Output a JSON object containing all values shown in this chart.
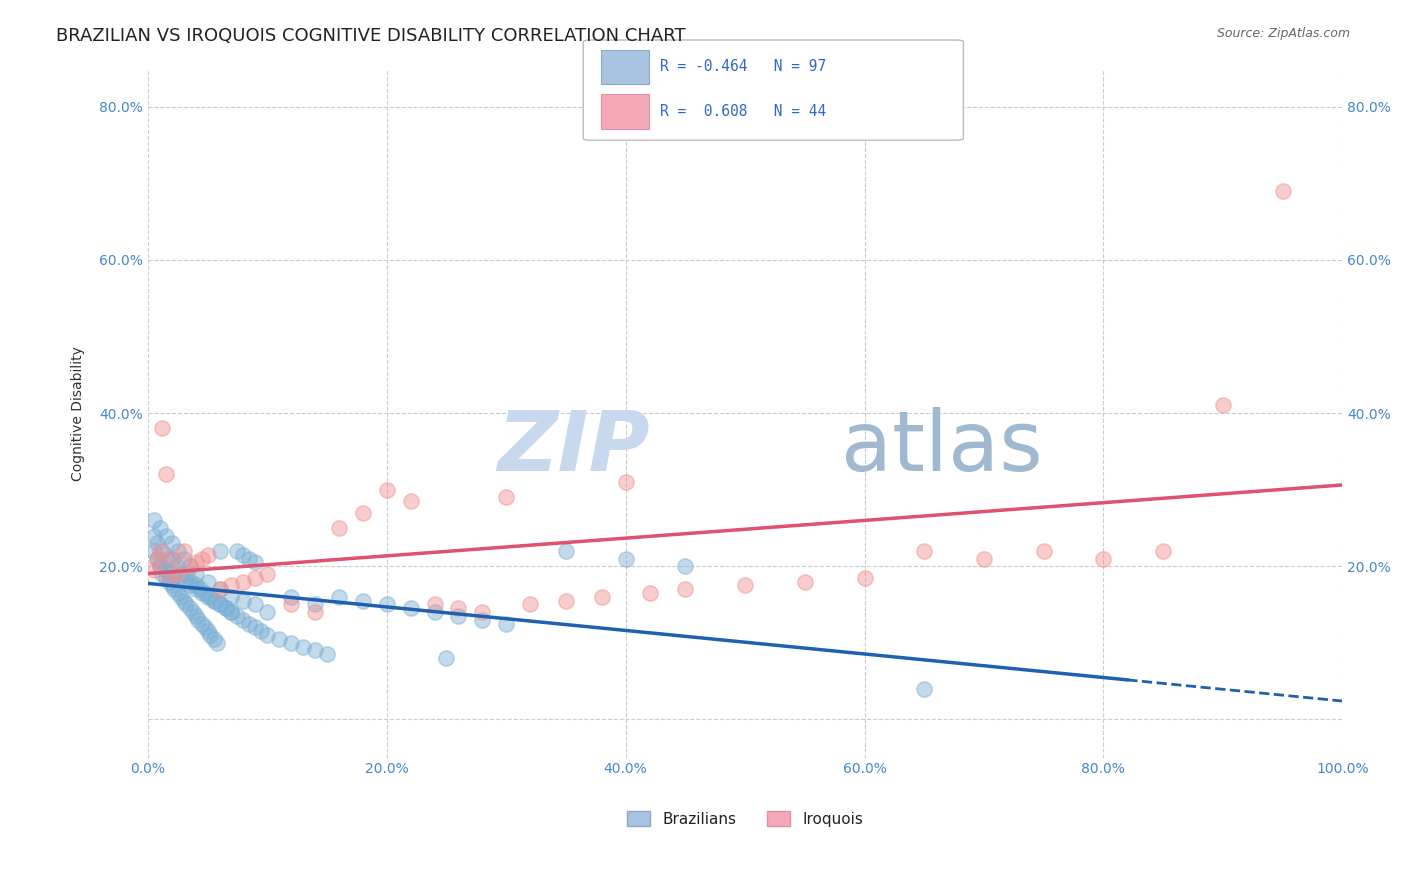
{
  "title": "BRAZILIAN VS IROQUOIS COGNITIVE DISABILITY CORRELATION CHART",
  "source": "Source: ZipAtlas.com",
  "ylabel": "Cognitive Disability",
  "watermark_zip": "ZIP",
  "watermark_atlas": "atlas",
  "legend_labels": [
    "Brazilians",
    "Iroquois"
  ],
  "legend_r1": "R = -0.464   N = 97",
  "legend_r2": "R =  0.608   N = 44",
  "xlim": [
    0.0,
    1.0
  ],
  "ylim": [
    -0.05,
    0.85
  ],
  "xticks": [
    0.0,
    0.2,
    0.4,
    0.6,
    0.8,
    1.0
  ],
  "yticks": [
    0.0,
    0.2,
    0.4,
    0.6,
    0.8
  ],
  "ytick_labels": [
    "",
    "20.0%",
    "40.0%",
    "60.0%",
    "80.0%"
  ],
  "xtick_labels": [
    "0.0%",
    "20.0%",
    "40.0%",
    "60.0%",
    "80.0%",
    "100.0%"
  ],
  "blue_scatter_x": [
    0.005,
    0.008,
    0.01,
    0.012,
    0.015,
    0.018,
    0.02,
    0.022,
    0.025,
    0.028,
    0.03,
    0.032,
    0.035,
    0.038,
    0.04,
    0.042,
    0.045,
    0.048,
    0.05,
    0.052,
    0.055,
    0.058,
    0.06,
    0.005,
    0.008,
    0.012,
    0.016,
    0.02,
    0.024,
    0.028,
    0.032,
    0.036,
    0.04,
    0.044,
    0.048,
    0.052,
    0.056,
    0.06,
    0.065,
    0.07,
    0.075,
    0.08,
    0.085,
    0.09,
    0.01,
    0.015,
    0.02,
    0.025,
    0.03,
    0.035,
    0.04,
    0.045,
    0.05,
    0.055,
    0.06,
    0.065,
    0.07,
    0.075,
    0.08,
    0.085,
    0.09,
    0.095,
    0.1,
    0.11,
    0.12,
    0.13,
    0.14,
    0.15,
    0.16,
    0.18,
    0.2,
    0.22,
    0.24,
    0.26,
    0.28,
    0.3,
    0.35,
    0.4,
    0.45,
    0.65,
    0.005,
    0.01,
    0.015,
    0.02,
    0.025,
    0.03,
    0.035,
    0.04,
    0.05,
    0.06,
    0.07,
    0.08,
    0.09,
    0.1,
    0.12,
    0.14,
    0.25
  ],
  "blue_scatter_y": [
    0.22,
    0.21,
    0.2,
    0.19,
    0.185,
    0.18,
    0.175,
    0.17,
    0.165,
    0.16,
    0.155,
    0.15,
    0.145,
    0.14,
    0.135,
    0.13,
    0.125,
    0.12,
    0.115,
    0.11,
    0.105,
    0.1,
    0.22,
    0.24,
    0.23,
    0.22,
    0.21,
    0.21,
    0.2,
    0.19,
    0.19,
    0.18,
    0.175,
    0.17,
    0.165,
    0.16,
    0.155,
    0.15,
    0.145,
    0.14,
    0.22,
    0.215,
    0.21,
    0.205,
    0.2,
    0.195,
    0.19,
    0.185,
    0.18,
    0.175,
    0.17,
    0.165,
    0.16,
    0.155,
    0.15,
    0.145,
    0.14,
    0.135,
    0.13,
    0.125,
    0.12,
    0.115,
    0.11,
    0.105,
    0.1,
    0.095,
    0.09,
    0.085,
    0.16,
    0.155,
    0.15,
    0.145,
    0.14,
    0.135,
    0.13,
    0.125,
    0.22,
    0.21,
    0.2,
    0.04,
    0.26,
    0.25,
    0.24,
    0.23,
    0.22,
    0.21,
    0.2,
    0.19,
    0.18,
    0.17,
    0.16,
    0.155,
    0.15,
    0.14,
    0.16,
    0.15,
    0.08
  ],
  "pink_scatter_x": [
    0.005,
    0.008,
    0.01,
    0.012,
    0.015,
    0.018,
    0.02,
    0.025,
    0.03,
    0.035,
    0.04,
    0.045,
    0.05,
    0.06,
    0.07,
    0.08,
    0.09,
    0.1,
    0.12,
    0.14,
    0.16,
    0.18,
    0.2,
    0.22,
    0.24,
    0.26,
    0.28,
    0.3,
    0.32,
    0.35,
    0.38,
    0.4,
    0.42,
    0.45,
    0.5,
    0.55,
    0.6,
    0.65,
    0.7,
    0.75,
    0.8,
    0.85,
    0.9,
    0.95
  ],
  "pink_scatter_y": [
    0.195,
    0.21,
    0.22,
    0.38,
    0.32,
    0.185,
    0.21,
    0.19,
    0.22,
    0.2,
    0.205,
    0.21,
    0.215,
    0.17,
    0.175,
    0.18,
    0.185,
    0.19,
    0.15,
    0.14,
    0.25,
    0.27,
    0.3,
    0.285,
    0.15,
    0.145,
    0.14,
    0.29,
    0.15,
    0.155,
    0.16,
    0.31,
    0.165,
    0.17,
    0.175,
    0.18,
    0.185,
    0.22,
    0.21,
    0.22,
    0.21,
    0.22,
    0.41,
    0.69
  ],
  "scatter_size": 120,
  "scatter_alpha": 0.45,
  "blue_color": "#7aafd4",
  "pink_color": "#f09090",
  "blue_line_color": "#2060b0",
  "pink_line_color": "#e05070",
  "grid_color": "#cccccc",
  "title_fontsize": 13,
  "axis_label_fontsize": 10,
  "tick_label_color": "#4488cc",
  "watermark_color": "#c8d8ee",
  "watermark_fontsize_zip": 60,
  "watermark_fontsize_atlas": 60
}
